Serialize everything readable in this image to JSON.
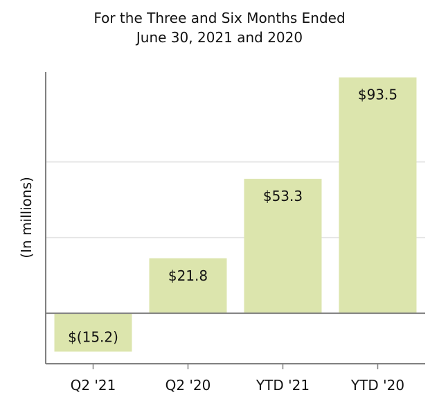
{
  "chart_data": {
    "type": "bar",
    "title": [
      "For the Three and Six Months Ended",
      "June 30, 2021 and 2020"
    ],
    "ylabel": "(In millions)",
    "xlabel": "",
    "categories": [
      "Q2 '21",
      "Q2 '20",
      "YTD '21",
      "YTD '20"
    ],
    "values": [
      -15.2,
      21.8,
      53.3,
      93.5
    ],
    "data_labels": [
      "$(15.2)",
      "$21.8",
      "$53.3",
      "$93.5"
    ],
    "ylim": [
      -20,
      100
    ],
    "y_ticks_shown": false,
    "grid": true,
    "bar_color": "#dce5ad",
    "axis_color": "#808080",
    "grid_color": "#e6e6e6"
  }
}
